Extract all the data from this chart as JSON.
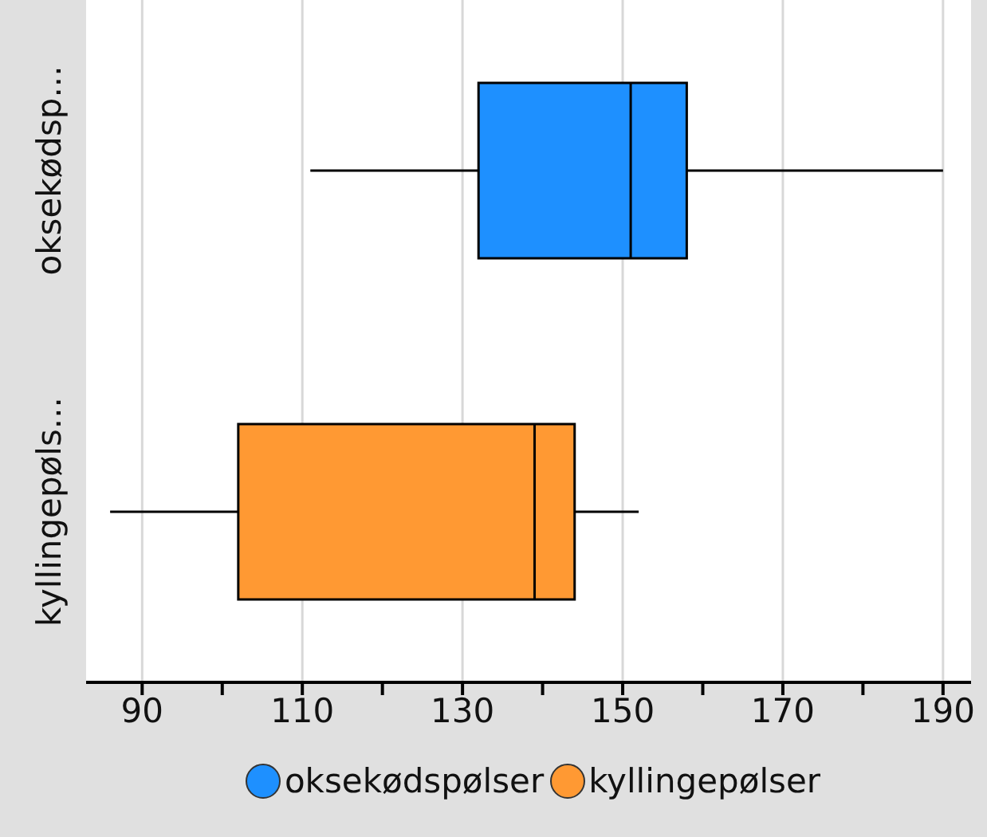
{
  "chart_data": {
    "type": "box",
    "orientation": "horizontal",
    "categories": [
      "oksekødsp...",
      "kyllingepøls..."
    ],
    "series": [
      {
        "name": "oksekødspølser",
        "color": "#1e90ff",
        "boxes": [
          {
            "low": 111,
            "q1": 132,
            "median": 151,
            "q3": 158,
            "high": 190
          },
          null
        ]
      },
      {
        "name": "kyllingepølser",
        "color": "#ff9933",
        "boxes": [
          null,
          {
            "low": 86,
            "q1": 102,
            "median": 139,
            "q3": 144,
            "high": 152
          }
        ]
      }
    ],
    "xlim": [
      83,
      193.5
    ],
    "xticks": [
      90,
      {
        "value": 100,
        "label": null
      },
      110,
      {
        "value": 120,
        "label": null
      },
      130,
      {
        "value": 140,
        "label": null
      },
      150,
      {
        "value": 160,
        "label": null
      },
      170,
      {
        "value": 180,
        "label": null
      },
      190
    ],
    "grid": "x",
    "legend": "bottom"
  }
}
